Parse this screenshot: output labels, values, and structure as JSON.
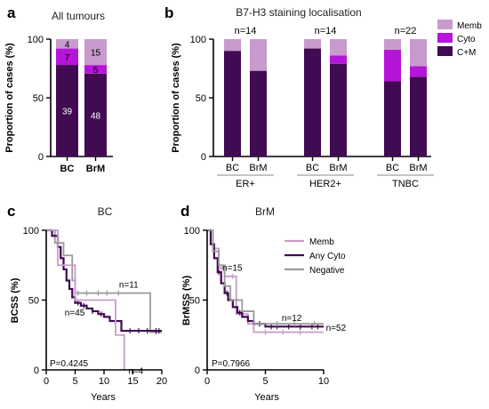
{
  "colors": {
    "memb": "#c89bcc",
    "cyto": "#b515d8",
    "cm": "#410a52",
    "any_cyto": "#410a52",
    "negative": "#9a9a9a",
    "memb_line": "#c89bcc"
  },
  "chart_data": [
    {
      "id": "a",
      "type": "bar",
      "stacked": true,
      "panel_label": "a",
      "title": "All tumours",
      "ylabel": "Proportion of cases (%)",
      "ylim": [
        0,
        100
      ],
      "yticks": [
        "0",
        "50",
        "100"
      ],
      "categories": [
        "BC",
        "BrM"
      ],
      "series": [
        {
          "key": "cm",
          "values": [
            39,
            48
          ],
          "labels": [
            "39",
            "48"
          ]
        },
        {
          "key": "cyto",
          "values": [
            7,
            5
          ],
          "labels": [
            "7",
            "5"
          ]
        },
        {
          "key": "memb",
          "values": [
            4,
            15
          ],
          "labels": [
            "4",
            "15"
          ]
        }
      ]
    },
    {
      "id": "b",
      "type": "bar",
      "stacked": true,
      "panel_label": "b",
      "title": "B7-H3 staining localisation",
      "ylabel": "Proportion of cases (%)",
      "ylim": [
        0,
        100
      ],
      "yticks": [
        "0",
        "50",
        "100"
      ],
      "groups": [
        {
          "name": "ER+",
          "n_label": "n=14",
          "categories": [
            "BC",
            "BrM"
          ]
        },
        {
          "name": "HER2+",
          "n_label": "n=14",
          "categories": [
            "BC",
            "BrM"
          ]
        },
        {
          "name": "TNBC",
          "n_label": "n=22",
          "categories": [
            "BC",
            "BrM"
          ]
        }
      ],
      "bars": [
        {
          "cm": 90,
          "cyto": 0,
          "memb": 10
        },
        {
          "cm": 73,
          "cyto": 0,
          "memb": 27
        },
        {
          "cm": 92,
          "cyto": 0,
          "memb": 8
        },
        {
          "cm": 79,
          "cyto": 7,
          "memb": 14
        },
        {
          "cm": 64,
          "cyto": 27,
          "memb": 9
        },
        {
          "cm": 68,
          "cyto": 9,
          "memb": 23
        }
      ],
      "legend": [
        {
          "key": "memb",
          "label": "Memb"
        },
        {
          "key": "cyto",
          "label": "Cyto"
        },
        {
          "key": "cm",
          "label": "C+M"
        }
      ],
      "legend_position": "right"
    },
    {
      "id": "c",
      "type": "line",
      "step": true,
      "panel_label": "c",
      "title": "BC",
      "xlabel": "Years",
      "ylabel": "BCSS (%)",
      "xlim": [
        0,
        20
      ],
      "ylim": [
        0,
        100
      ],
      "xticks": [
        "0",
        "5",
        "10",
        "15",
        "20"
      ],
      "yticks": [
        "0",
        "50",
        "100"
      ],
      "p_value": "P=0.4245",
      "series": [
        {
          "key": "negative",
          "n_label": "n=11",
          "x": [
            0,
            1.5,
            3,
            4.5,
            5,
            14,
            18,
            18,
            20
          ],
          "y": [
            100,
            91,
            82,
            64,
            55,
            55,
            27,
            27,
            27
          ]
        },
        {
          "key": "any_cyto",
          "n_label": "n=45",
          "x": [
            0,
            1,
            2,
            2.5,
            3,
            3.5,
            4,
            4.5,
            5,
            6,
            7,
            8,
            9,
            10,
            11,
            13,
            20
          ],
          "y": [
            100,
            96,
            88,
            80,
            72,
            64,
            58,
            52,
            48,
            46,
            44,
            42,
            40,
            38,
            35,
            28,
            28
          ]
        },
        {
          "key": "memb",
          "n_label": "n=4",
          "x": [
            0,
            2,
            5,
            10,
            12,
            13.5
          ],
          "y": [
            100,
            75,
            50,
            50,
            25,
            0
          ]
        }
      ]
    },
    {
      "id": "d",
      "type": "line",
      "step": true,
      "panel_label": "d",
      "title": "BrM",
      "xlabel": "Years",
      "ylabel": "BrMSS (%)",
      "xlim": [
        0,
        10
      ],
      "ylim": [
        0,
        100
      ],
      "xticks": [
        "0",
        "5",
        "10"
      ],
      "yticks": [
        "0",
        "50",
        "100"
      ],
      "p_value": "P=0.7966",
      "series": [
        {
          "key": "memb",
          "n_label": "n=15",
          "x": [
            0,
            0.5,
            1,
            1.5,
            2,
            2.5,
            3.5,
            4,
            10
          ],
          "y": [
            100,
            87,
            73,
            67,
            67,
            40,
            33,
            27,
            27
          ]
        },
        {
          "key": "any_cyto",
          "n_label": "n=52",
          "x": [
            0,
            0.3,
            0.6,
            0.9,
            1.2,
            1.5,
            1.8,
            2.2,
            2.6,
            3,
            3.5,
            4,
            5,
            10
          ],
          "y": [
            100,
            90,
            80,
            70,
            62,
            55,
            50,
            45,
            41,
            38,
            35,
            33,
            31,
            31
          ]
        },
        {
          "key": "negative",
          "n_label": "n=12",
          "x": [
            0,
            0.5,
            1,
            1.5,
            2,
            3,
            4,
            10
          ],
          "y": [
            100,
            85,
            75,
            60,
            50,
            42,
            33,
            33
          ]
        }
      ],
      "legend": [
        {
          "key": "memb",
          "label": "Memb"
        },
        {
          "key": "any_cyto",
          "label": "Any Cyto"
        },
        {
          "key": "negative",
          "label": "Negative"
        }
      ],
      "legend_position": "top-right"
    }
  ]
}
